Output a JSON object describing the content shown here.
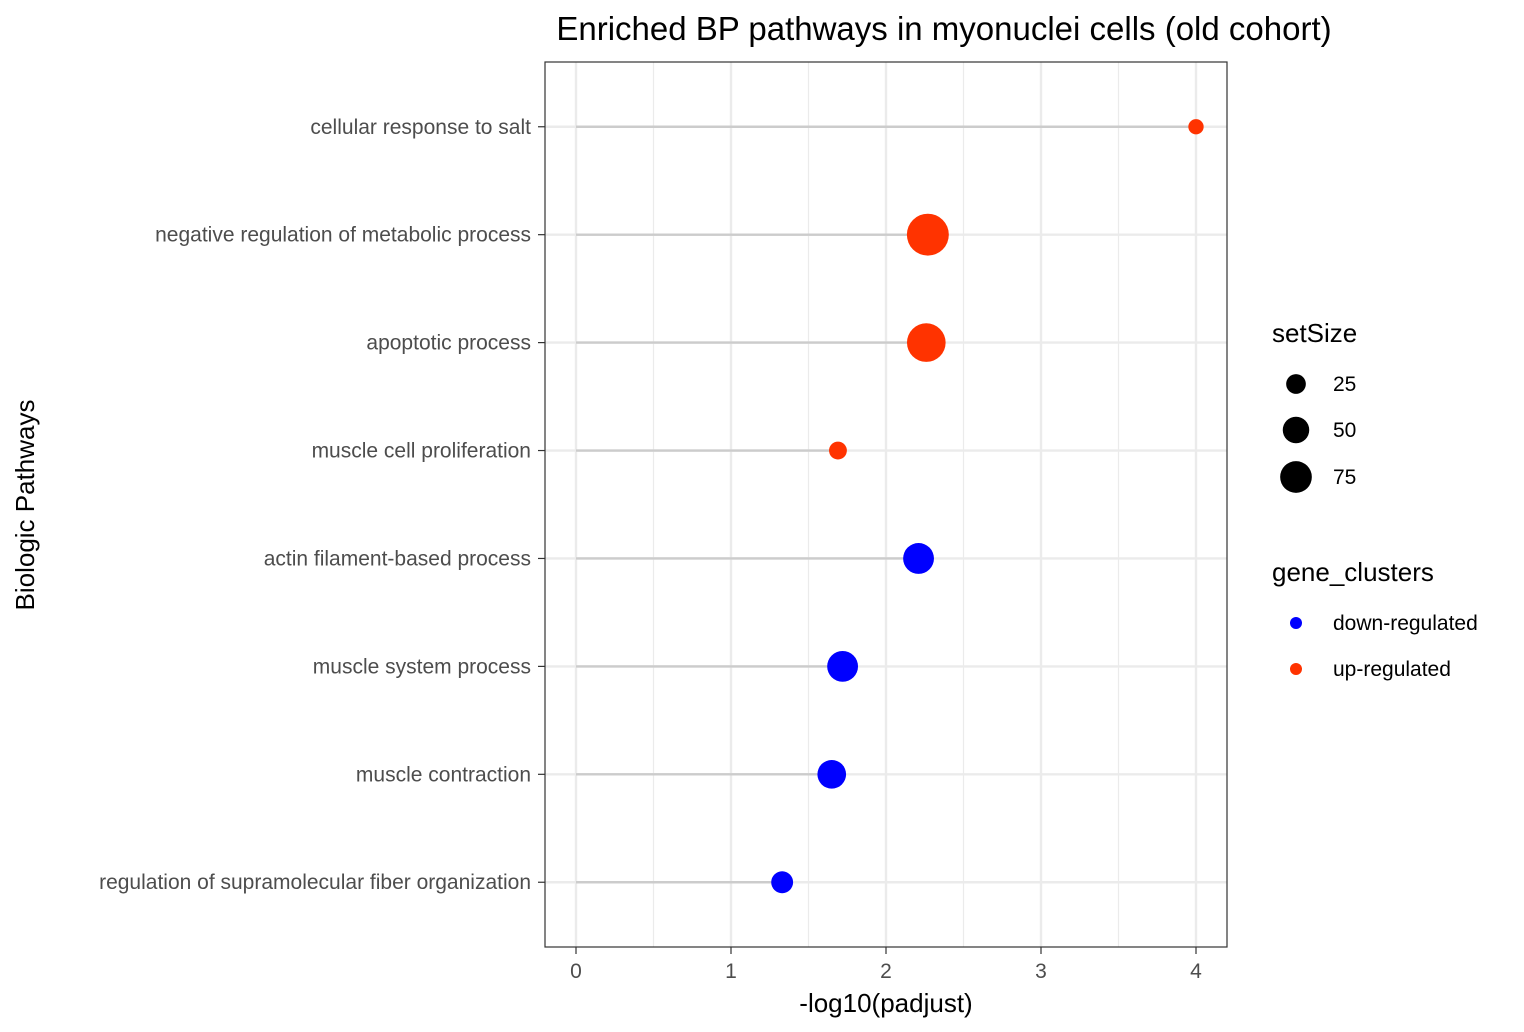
{
  "chart_data": {
    "type": "scatter",
    "title": "Enriched BP pathways in myonuclei cells (old cohort)",
    "xlabel": "-log10(padjust)",
    "ylabel": "Biologic Pathways",
    "xlim": [
      -0.2,
      4.2
    ],
    "x_ticks": [
      0,
      1,
      2,
      3,
      4
    ],
    "x_tick_labels": [
      "0",
      "1",
      "2",
      "3",
      "4"
    ],
    "grid": true,
    "categories": [
      "cellular response to salt",
      "negative regulation of metabolic process",
      "apoptotic process",
      "muscle cell proliferation",
      "actin filament-based process",
      "muscle system process",
      "muscle contraction",
      "regulation of supramolecular fiber organization"
    ],
    "points": [
      {
        "pathway": "cellular response to salt",
        "x": 4.0,
        "setSize": 8,
        "cluster": "up-regulated"
      },
      {
        "pathway": "negative regulation of metabolic process",
        "x": 2.27,
        "setSize": 90,
        "cluster": "up-regulated"
      },
      {
        "pathway": "apoptotic process",
        "x": 2.26,
        "setSize": 75,
        "cluster": "up-regulated"
      },
      {
        "pathway": "muscle cell proliferation",
        "x": 1.69,
        "setSize": 12,
        "cluster": "up-regulated"
      },
      {
        "pathway": "actin filament-based process",
        "x": 2.21,
        "setSize": 45,
        "cluster": "down-regulated"
      },
      {
        "pathway": "muscle system process",
        "x": 1.72,
        "setSize": 45,
        "cluster": "down-regulated"
      },
      {
        "pathway": "muscle contraction",
        "x": 1.65,
        "setSize": 38,
        "cluster": "down-regulated"
      },
      {
        "pathway": "regulation of supramolecular fiber organization",
        "x": 1.33,
        "setSize": 20,
        "cluster": "down-regulated"
      }
    ],
    "legend": {
      "placement": "right",
      "size_title": "setSize",
      "size_entries": [
        {
          "label": "25",
          "value": 25
        },
        {
          "label": "50",
          "value": 50
        },
        {
          "label": "75",
          "value": 75
        }
      ],
      "color_title": "gene_clusters",
      "color_entries": [
        {
          "label": "down-regulated",
          "color": "#0000ff"
        },
        {
          "label": "up-regulated",
          "color": "#ff3300"
        }
      ]
    },
    "colors": {
      "down-regulated": "#0000ff",
      "up-regulated": "#ff3300",
      "segment": "#cccccc",
      "grid": "#ebebeb",
      "panel_border": "#333333"
    }
  }
}
